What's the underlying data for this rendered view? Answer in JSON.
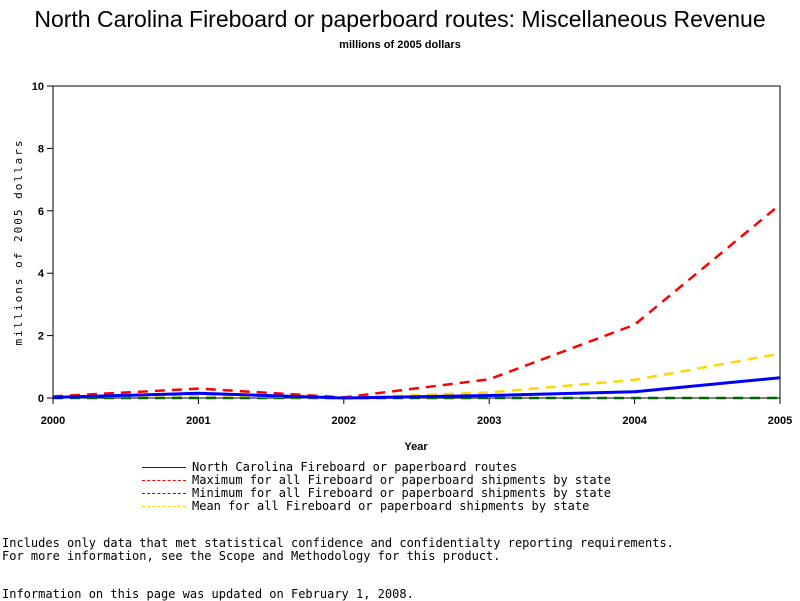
{
  "chart_data": {
    "type": "line",
    "title": "North Carolina Fireboard or paperboard routes: Miscellaneous Revenue",
    "subtitle": "millions of 2005 dollars",
    "xlabel": "Year",
    "ylabel": "millions of 2005 dollars",
    "xlim": [
      2000,
      2005
    ],
    "ylim": [
      0,
      10
    ],
    "x_ticks": [
      2000,
      2001,
      2002,
      2003,
      2004,
      2005
    ],
    "y_ticks": [
      0,
      2,
      4,
      6,
      8,
      10
    ],
    "grid": false,
    "legend_position": "bottom",
    "x": [
      2000,
      2001,
      2002,
      2003,
      2004,
      2005
    ],
    "series": [
      {
        "name": "North Carolina Fireboard or paperboard routes",
        "values": [
          0.02,
          0.15,
          0.0,
          0.08,
          0.2,
          0.65
        ],
        "color": "#0000ff",
        "style": "solid"
      },
      {
        "name": "Maximum for all Fireboard or paperboard shipments by state",
        "values": [
          0.05,
          0.3,
          0.02,
          0.6,
          2.35,
          6.2
        ],
        "color": "#ff0000",
        "style": "dashed"
      },
      {
        "name": "Minimum for all Fireboard or paperboard shipments by state",
        "values": [
          0.0,
          0.0,
          0.0,
          0.0,
          0.0,
          0.0
        ],
        "color": "#006400",
        "style": "dashed"
      },
      {
        "name": "Mean for all Fireboard or paperboard shipments by state",
        "values": [
          0.03,
          0.1,
          0.0,
          0.18,
          0.58,
          1.42
        ],
        "color": "#ffd700",
        "style": "dashed"
      }
    ]
  },
  "notes": {
    "line1": "Includes only data that met statistical confidence and confidentialty reporting requirements.",
    "line2": "For more information, see the Scope and Methodology for this product.",
    "updated": "Information on this page was updated on February 1, 2008."
  }
}
